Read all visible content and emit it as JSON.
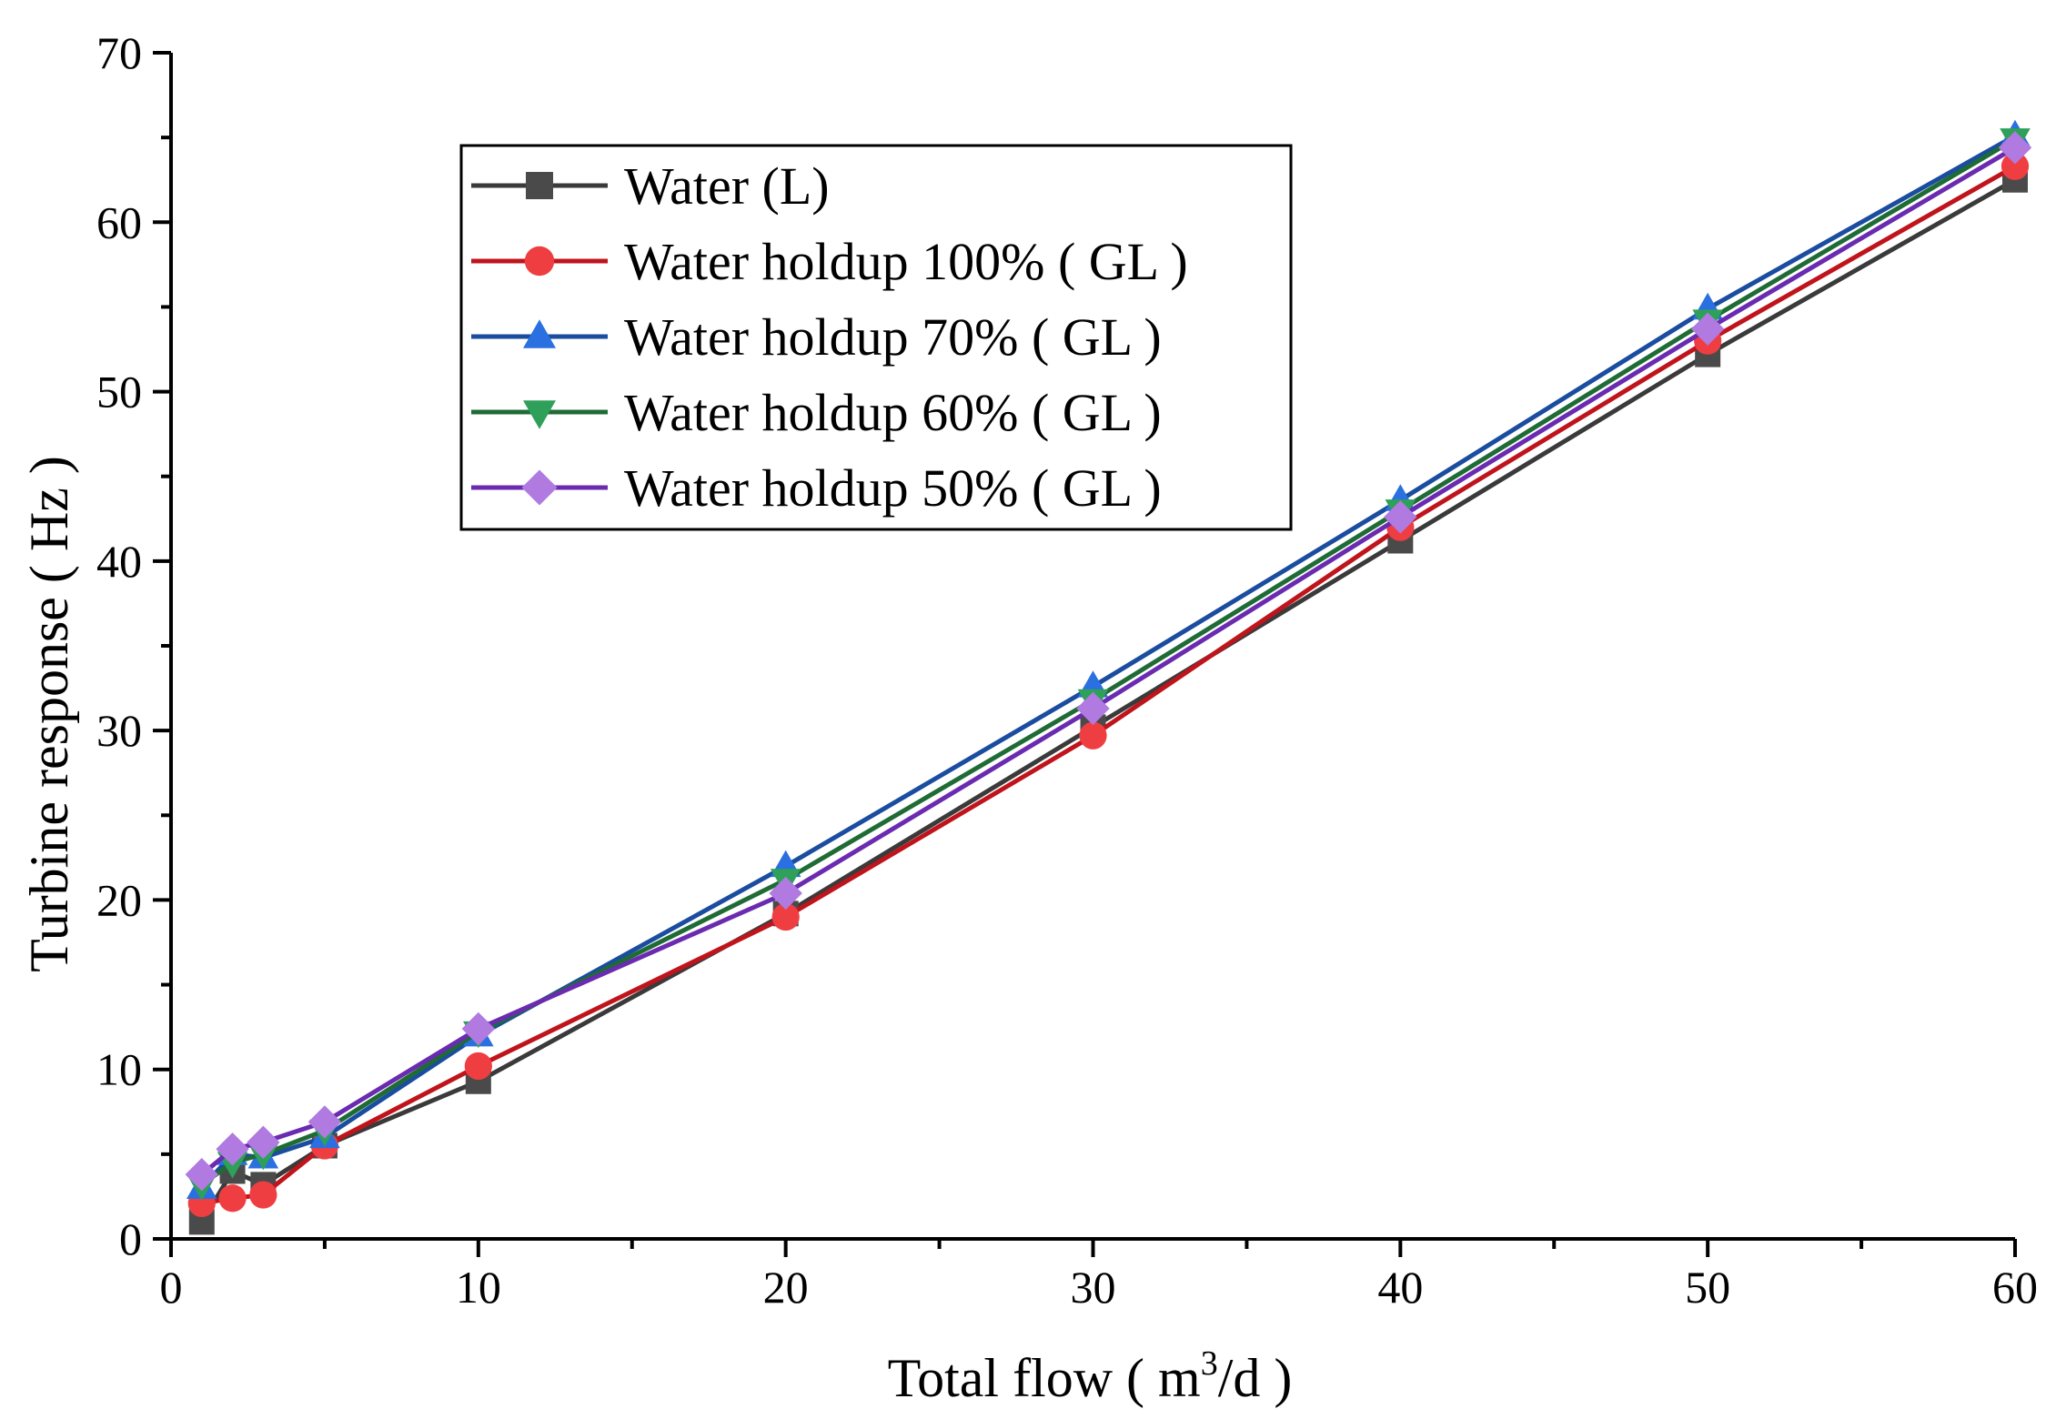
{
  "chart_data": {
    "type": "line",
    "title": "",
    "xlabel": "Total flow ( m3/d )",
    "xlabel_parts": {
      "before": "Total flow ( m",
      "sup": "3",
      "after": "/d )"
    },
    "ylabel": "Turbine response ( Hz )",
    "xlim": [
      0,
      60
    ],
    "ylim": [
      0,
      70
    ],
    "x_ticks": [
      0,
      10,
      20,
      30,
      40,
      50,
      60
    ],
    "x_tick_labels": [
      "0",
      "10",
      "20",
      "30",
      "40",
      "50",
      "60"
    ],
    "x_minor_ticks": [
      5,
      15,
      25,
      35,
      45,
      55
    ],
    "y_ticks": [
      0,
      10,
      20,
      30,
      40,
      50,
      60,
      70
    ],
    "y_tick_labels": [
      "0",
      "10",
      "20",
      "30",
      "40",
      "50",
      "60",
      "70"
    ],
    "y_minor_ticks": [
      5,
      15,
      25,
      35,
      45,
      55,
      65
    ],
    "grid": false,
    "legend_position": "top-left",
    "x": [
      1,
      2,
      3,
      5,
      10,
      20,
      30,
      40,
      50,
      60
    ],
    "series": [
      {
        "name": "Water (L)",
        "marker": "square",
        "line_color": "#3a3a3a",
        "marker_color": "#4a4a4a",
        "values": [
          1.0,
          4.0,
          3.2,
          5.5,
          9.3,
          19.2,
          30.2,
          41.2,
          52.2,
          62.5
        ]
      },
      {
        "name": "Water holdup 100% ( GL )",
        "marker": "circle",
        "line_color": "#c0141c",
        "marker_color": "#ef3e42",
        "values": [
          2.1,
          2.4,
          2.6,
          5.5,
          10.2,
          19.0,
          29.7,
          42.0,
          53.0,
          63.3
        ]
      },
      {
        "name": "Water holdup 70% ( GL )",
        "marker": "triangle-up",
        "line_color": "#1a4da0",
        "marker_color": "#2a70e0",
        "values": [
          3.0,
          5.0,
          4.8,
          6.0,
          12.0,
          22.0,
          32.6,
          43.6,
          54.9,
          65.1
        ]
      },
      {
        "name": "Water holdup 60% ( GL )",
        "marker": "triangle-down",
        "line_color": "#1f6b35",
        "marker_color": "#2ea05a",
        "values": [
          3.2,
          4.5,
          5.0,
          6.4,
          12.2,
          21.2,
          31.8,
          43.0,
          54.2,
          64.9
        ]
      },
      {
        "name": "Water holdup 50% ( GL )",
        "marker": "diamond",
        "line_color": "#6a2bb0",
        "marker_color": "#b07ae0",
        "values": [
          3.8,
          5.3,
          5.7,
          6.9,
          12.4,
          20.4,
          31.3,
          42.6,
          53.7,
          64.4
        ]
      }
    ]
  }
}
